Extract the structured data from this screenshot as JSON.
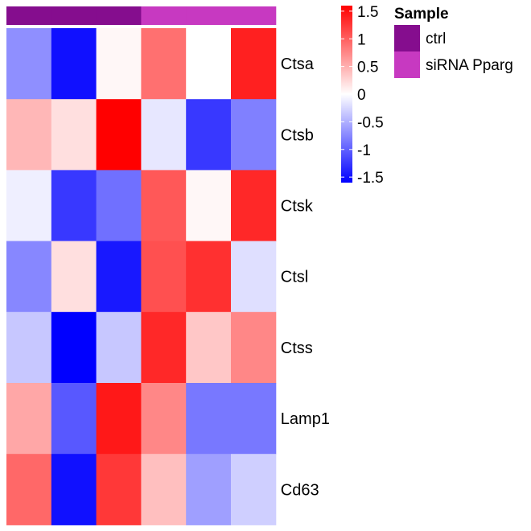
{
  "chart_data": {
    "type": "heatmap",
    "title": "",
    "xlabel": "",
    "ylabel": "",
    "rows": [
      "Ctsa",
      "Ctsb",
      "Ctsk",
      "Ctsl",
      "Ctss",
      "Lamp1",
      "Cd63"
    ],
    "columns": [
      "ctrl",
      "ctrl",
      "ctrl",
      "siRNA Pparg",
      "siRNA Pparg",
      "siRNA Pparg"
    ],
    "values": [
      [
        -0.7,
        -1.5,
        0.05,
        0.9,
        0.0,
        1.4
      ],
      [
        0.45,
        0.2,
        1.6,
        -0.15,
        -1.25,
        -0.8
      ],
      [
        -0.1,
        -1.25,
        -0.9,
        1.05,
        0.05,
        1.35
      ],
      [
        -0.75,
        0.2,
        -1.45,
        1.1,
        1.3,
        -0.2
      ],
      [
        -0.35,
        -1.6,
        -0.35,
        1.35,
        0.35,
        0.75
      ],
      [
        0.55,
        -1.05,
        1.45,
        0.75,
        -0.85,
        -0.85
      ],
      [
        0.95,
        -1.5,
        1.25,
        0.4,
        -0.6,
        -0.3
      ]
    ],
    "color_scale": {
      "low_color": "#0000FF",
      "mid_color": "#FFFFFF",
      "high_color": "#FF0000",
      "min": -1.6,
      "max": 1.6,
      "ticks": [
        1.5,
        1,
        0.5,
        0,
        -0.5,
        -1,
        -1.5
      ],
      "tick_labels": [
        "1.5",
        "1",
        "0.5",
        "0",
        "-0.5",
        "-1",
        "-1.5"
      ]
    },
    "annotation": {
      "title": "Sample",
      "levels": [
        {
          "label": "ctrl",
          "color": "#850D8E"
        },
        {
          "label": "siRNA Pparg",
          "color": "#C739C1"
        }
      ]
    },
    "grid": false
  }
}
